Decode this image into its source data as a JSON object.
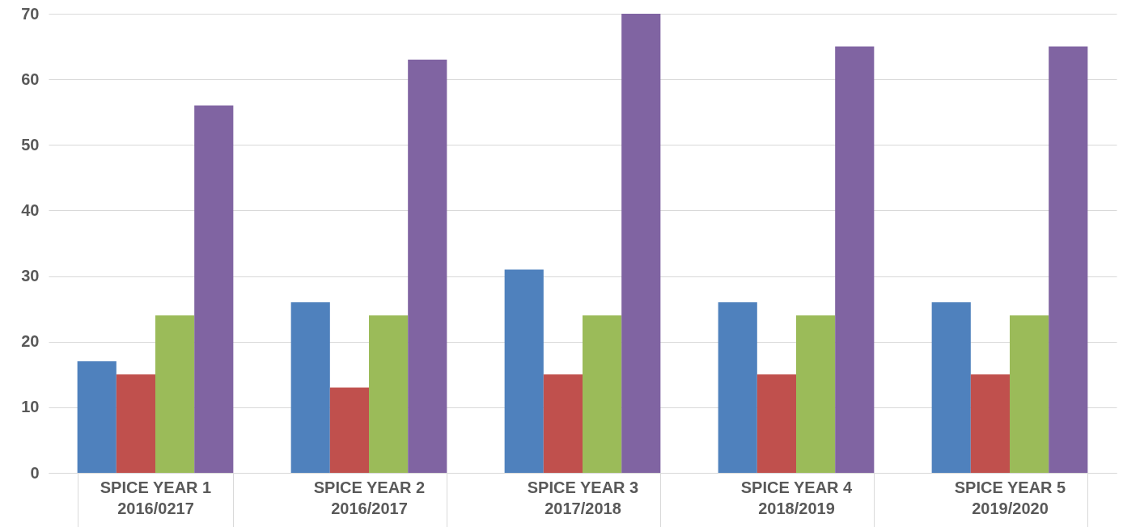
{
  "chart_data": {
    "type": "bar",
    "categories": [
      "SPICE YEAR 1\n2016/0217",
      "SPICE YEAR 2\n2016/2017",
      "SPICE YEAR 3\n2017/2018",
      "SPICE YEAR 4\n2018/2019",
      "SPICE YEAR 5\n2019/2020"
    ],
    "series": [
      {
        "color": "#4f81bd",
        "values": [
          17,
          26,
          31,
          26,
          26
        ]
      },
      {
        "color": "#c0504d",
        "values": [
          15,
          13,
          15,
          15,
          15
        ]
      },
      {
        "color": "#9bbb59",
        "values": [
          24,
          24,
          24,
          24,
          24
        ]
      },
      {
        "color": "#8064a2",
        "values": [
          56,
          63,
          70,
          65,
          65
        ]
      }
    ],
    "ylim": [
      0,
      70
    ],
    "yticks": [
      0,
      10,
      20,
      30,
      40,
      50,
      60,
      70
    ],
    "grid": "y"
  }
}
